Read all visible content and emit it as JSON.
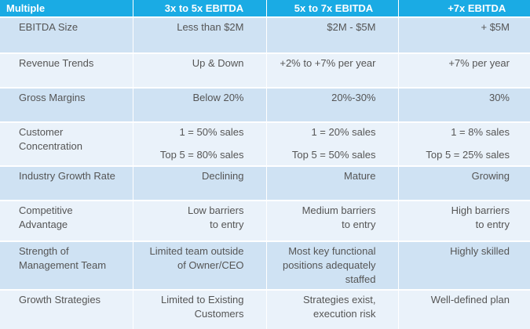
{
  "table": {
    "headers": [
      "Multiple",
      "3x to 5x EBITDA",
      "5x to 7x EBITDA",
      "+7x EBITDA"
    ],
    "rows": [
      {
        "label": [
          "EBITDA Size"
        ],
        "cells": [
          [
            "Less than $2M"
          ],
          [
            "$2M - $5M"
          ],
          [
            "+ $5M"
          ]
        ]
      },
      {
        "label": [
          "Revenue Trends"
        ],
        "cells": [
          [
            "Up & Down"
          ],
          [
            "+2% to +7% per year"
          ],
          [
            "+7% per year"
          ]
        ]
      },
      {
        "label": [
          "Gross Margins"
        ],
        "cells": [
          [
            "Below 20%"
          ],
          [
            "20%-30%"
          ],
          [
            "30%"
          ]
        ]
      },
      {
        "label": [
          "Customer",
          "Concentration"
        ],
        "cells": [
          [
            "1 = 50% sales",
            "Top 5 = 80% sales"
          ],
          [
            "1 = 20% sales",
            "Top 5 = 50% sales"
          ],
          [
            "1 = 8% sales",
            "Top 5 = 25% sales"
          ]
        ]
      },
      {
        "label": [
          "Industry Growth Rate"
        ],
        "cells": [
          [
            "Declining"
          ],
          [
            "Mature"
          ],
          [
            "Growing"
          ]
        ]
      },
      {
        "label": [
          "Competitive",
          "Advantage"
        ],
        "cells": [
          [
            "Low barriers",
            "to entry"
          ],
          [
            "Medium barriers",
            "to entry"
          ],
          [
            "High barriers",
            "to entry"
          ]
        ]
      },
      {
        "label": [
          "Strength of",
          "Management Team"
        ],
        "cells": [
          [
            "Limited team outside",
            "of Owner/CEO"
          ],
          [
            "Most key functional",
            "positions adequately",
            "staffed"
          ],
          [
            "Highly skilled"
          ]
        ]
      },
      {
        "label": [
          "Growth Strategies"
        ],
        "cells": [
          [
            "Limited to Existing",
            "Customers"
          ],
          [
            "Strategies exist,",
            "execution risk"
          ],
          [
            "Well-defined plan"
          ]
        ]
      }
    ]
  }
}
